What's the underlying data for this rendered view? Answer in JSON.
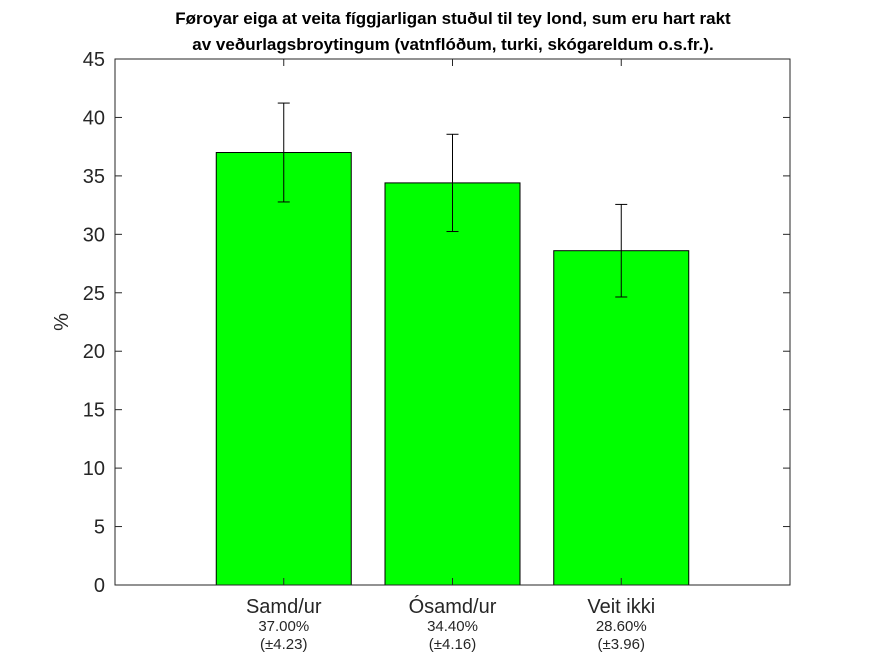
{
  "chart_data": {
    "type": "bar",
    "title_lines": [
      "Føroyar eiga at veita fíggjarligan stuðul til tey lond, sum eru hart rakt",
      "av veðurlagsbroytingum (vatnflóðum, turki, skógareldum o.s.fr.)."
    ],
    "ylabel": "%",
    "xlabel": "",
    "ylim": [
      0,
      45
    ],
    "yticks": [
      0,
      5,
      10,
      15,
      20,
      25,
      30,
      35,
      40,
      45
    ],
    "xlim": [
      0,
      4
    ],
    "bar_color": "#00ff00",
    "grid": false,
    "categories": [
      "Samd/ur",
      "Ósamd/ur",
      "Veit ikki"
    ],
    "values": [
      37.0,
      34.4,
      28.6
    ],
    "errors": [
      4.23,
      4.16,
      3.96
    ],
    "value_labels": [
      "37.00%",
      "34.40%",
      "28.60%"
    ],
    "error_labels": [
      "(±4.23)",
      "(±4.16)",
      "(±3.96)"
    ]
  }
}
